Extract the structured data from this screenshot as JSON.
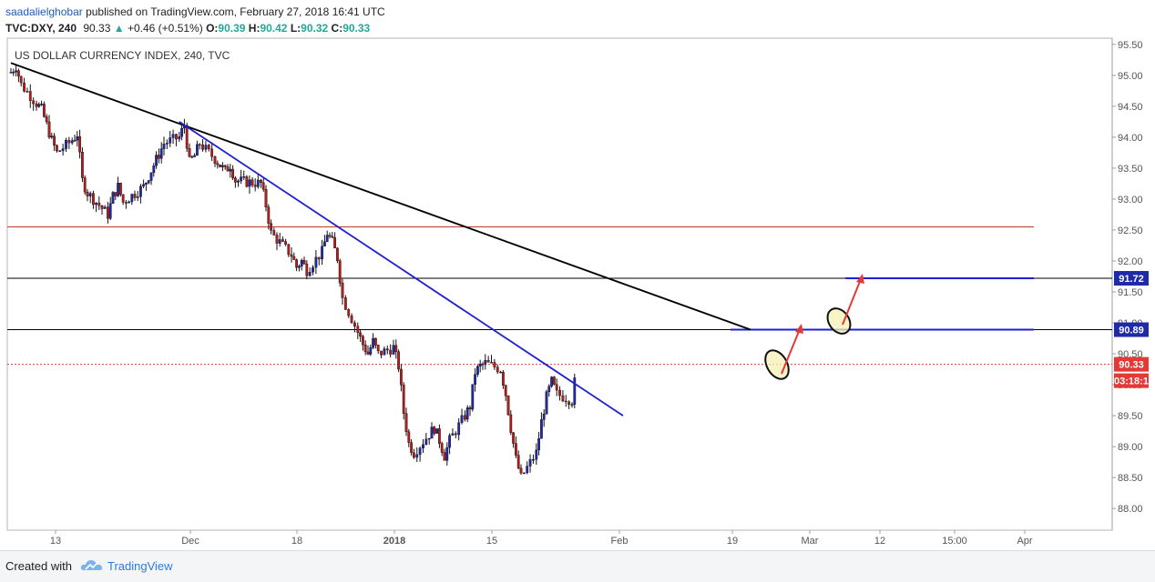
{
  "header": {
    "author": "saadalielghobar",
    "published": "published on TradingView.com, February 27, 2018 16:41 UTC",
    "symbol": "TVC:DXY, 240",
    "last": "90.33",
    "change": "+0.46 (+0.51%)",
    "o_label": "O:",
    "o_value": "90.39",
    "h_label": "H:",
    "h_value": "90.42",
    "l_label": "L:",
    "l_value": "90.32",
    "c_label": "C:",
    "c_value": "90.33"
  },
  "chart_data": {
    "type": "candlestick",
    "title": "US DOLLAR CURRENCY INDEX, 240, TVC",
    "ylim": [
      87.65,
      95.6
    ],
    "y_ticks": [
      "95.50",
      "95.00",
      "94.50",
      "94.00",
      "93.50",
      "93.00",
      "92.50",
      "92.00",
      "91.50",
      "91.00",
      "90.50",
      "90.00",
      "89.50",
      "89.00",
      "88.50",
      "88.00"
    ],
    "x_ticks": [
      "13",
      "Dec",
      "18",
      "2018",
      "15",
      "Feb",
      "19",
      "Mar",
      "12",
      "15:00",
      "Apr"
    ],
    "price_path": [
      [
        "Nov 08",
        95.05
      ],
      [
        "Nov 09",
        95.15
      ],
      [
        "Nov 10",
        94.85
      ],
      [
        "Nov 13",
        94.55
      ],
      [
        "Nov 14",
        94.45
      ],
      [
        "Nov 16",
        93.95
      ],
      [
        "Nov 17",
        93.75
      ],
      [
        "Nov 20",
        93.95
      ],
      [
        "Nov 21",
        94.05
      ],
      [
        "Nov 22",
        93.3
      ],
      [
        "Nov 23",
        93.1
      ],
      [
        "Nov 27",
        92.75
      ],
      [
        "Nov 28",
        93.05
      ],
      [
        "Nov 29",
        93.2
      ],
      [
        "Nov 30",
        92.95
      ],
      [
        "Dec 04",
        93.2
      ],
      [
        "Dec 06",
        93.55
      ],
      [
        "Dec 08",
        93.9
      ],
      [
        "Dec 11",
        94.0
      ],
      [
        "Dec 12",
        94.2
      ],
      [
        "Dec 13",
        93.6
      ],
      [
        "Dec 14",
        93.7
      ],
      [
        "Dec 15",
        93.9
      ],
      [
        "Dec 18",
        93.65
      ],
      [
        "Dec 20",
        93.45
      ],
      [
        "Dec 21",
        93.55
      ],
      [
        "Dec 22",
        93.3
      ],
      [
        "Dec 27",
        93.25
      ],
      [
        "Dec 28",
        92.9
      ],
      [
        "Dec 29",
        92.45
      ],
      [
        "Jan 02",
        92.1
      ],
      [
        "Jan 03",
        91.9
      ],
      [
        "Jan 04",
        92.0
      ],
      [
        "Jan 05",
        91.85
      ],
      [
        "Jan 08",
        92.15
      ],
      [
        "Jan 09",
        92.45
      ],
      [
        "Jan 10",
        92.3
      ],
      [
        "Jan 11",
        92.05
      ],
      [
        "Jan 12",
        91.4
      ],
      [
        "Jan 15",
        90.85
      ],
      [
        "Jan 16",
        90.65
      ],
      [
        "Jan 17",
        90.5
      ],
      [
        "Jan 18",
        90.7
      ],
      [
        "Jan 19",
        90.5
      ],
      [
        "Jan 22",
        90.6
      ],
      [
        "Jan 23",
        90.3
      ],
      [
        "Jan 24",
        89.55
      ],
      [
        "Jan 25",
        89.05
      ],
      [
        "Jan 26",
        88.9
      ],
      [
        "Jan 29",
        89.2
      ],
      [
        "Jan 30",
        89.3
      ],
      [
        "Jan 31",
        89.1
      ],
      [
        "Feb 01",
        88.85
      ],
      [
        "Feb 02",
        89.1
      ],
      [
        "Feb 05",
        89.5
      ],
      [
        "Feb 06",
        89.65
      ],
      [
        "Feb 07",
        90.2
      ],
      [
        "Feb 08",
        90.3
      ],
      [
        "Feb 09",
        90.35
      ],
      [
        "Feb 12",
        90.25
      ],
      [
        "Feb 13",
        89.85
      ],
      [
        "Feb 14",
        89.3
      ],
      [
        "Feb 15",
        88.8
      ],
      [
        "Feb 16",
        88.5
      ],
      [
        "Feb 19",
        88.9
      ],
      [
        "Feb 20",
        89.4
      ],
      [
        "Feb 21",
        89.8
      ],
      [
        "Feb 22",
        90.05
      ],
      [
        "Feb 23",
        89.85
      ],
      [
        "Feb 26",
        89.75
      ],
      [
        "Feb 27",
        90.33
      ]
    ],
    "horizontal_levels": [
      {
        "value": 92.55,
        "color": "#c0392b"
      },
      {
        "value": 91.72,
        "color": "#000000"
      },
      {
        "value": 90.89,
        "color": "#000000"
      },
      {
        "value": 90.33,
        "color": "#e53935",
        "style": "dotted"
      }
    ],
    "trendlines": [
      {
        "color": "#000000",
        "from": [
          "Nov 08",
          95.2
        ],
        "to": [
          "Apr 02",
          90.89
        ]
      },
      {
        "color": "#1f1fd0",
        "from": [
          "Dec 11",
          94.25
        ],
        "to": [
          "Mar 08",
          89.5
        ]
      }
    ],
    "target_segments": [
      {
        "value": 91.72,
        "color": "#1f1fd0"
      },
      {
        "value": 90.89,
        "color": "#1f1fd0"
      }
    ],
    "price_labels": [
      {
        "text": "91.72",
        "color": "#1f2aa8"
      },
      {
        "text": "90.89",
        "color": "#1f2aa8"
      },
      {
        "text": "90.33",
        "color": "#e53935"
      },
      {
        "text": "03:18:1",
        "color": "#e53935"
      }
    ]
  },
  "footer": {
    "created_with": "Created with",
    "brand": "TradingView"
  }
}
